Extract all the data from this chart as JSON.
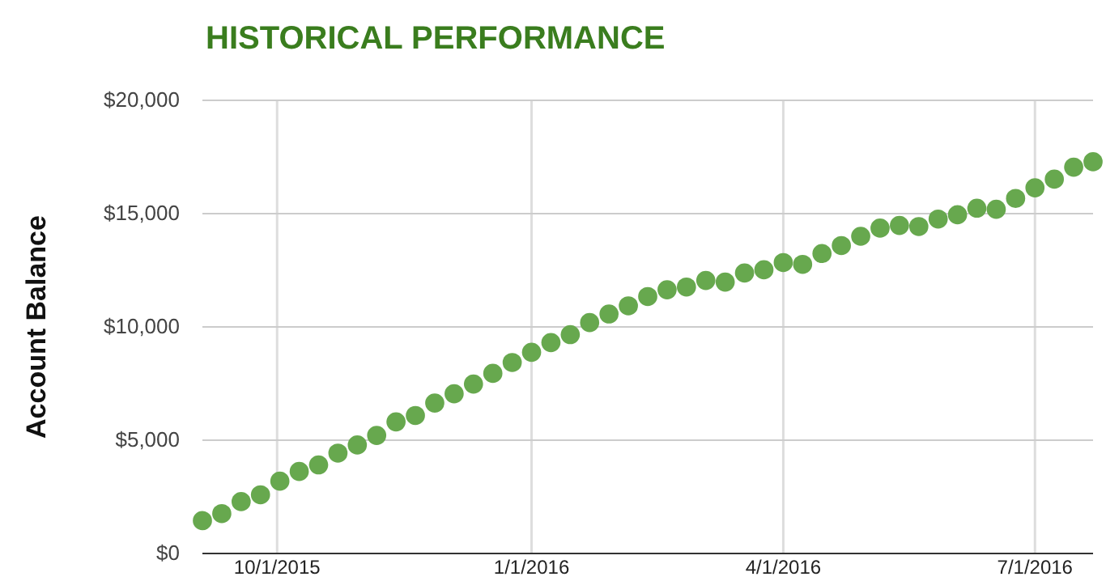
{
  "chart_data": {
    "type": "scatter",
    "title": "HISTORICAL PERFORMANCE",
    "ylabel": "Account Balance",
    "x": [
      "2015-09-04",
      "2015-09-11",
      "2015-09-18",
      "2015-09-25",
      "2015-10-02",
      "2015-10-09",
      "2015-10-16",
      "2015-10-23",
      "2015-10-30",
      "2015-11-06",
      "2015-11-13",
      "2015-11-20",
      "2015-11-27",
      "2015-12-04",
      "2015-12-11",
      "2015-12-18",
      "2015-12-25",
      "2016-01-01",
      "2016-01-08",
      "2016-01-15",
      "2016-01-22",
      "2016-01-29",
      "2016-02-05",
      "2016-02-12",
      "2016-02-19",
      "2016-02-26",
      "2016-03-04",
      "2016-03-11",
      "2016-03-18",
      "2016-03-25",
      "2016-04-01",
      "2016-04-08",
      "2016-04-15",
      "2016-04-22",
      "2016-04-29",
      "2016-05-06",
      "2016-05-13",
      "2016-05-20",
      "2016-05-27",
      "2016-06-03",
      "2016-06-10",
      "2016-06-17",
      "2016-06-24",
      "2016-07-01",
      "2016-07-08",
      "2016-07-15",
      "2016-07-22"
    ],
    "series": [
      {
        "color": "#67a84e",
        "values": [
          1450,
          1760,
          2290,
          2590,
          3190,
          3620,
          3910,
          4430,
          4790,
          5210,
          5810,
          6090,
          6640,
          7050,
          7480,
          7950,
          8430,
          8880,
          9310,
          9660,
          10190,
          10570,
          10930,
          11340,
          11640,
          11760,
          12050,
          11980,
          12380,
          12520,
          12840,
          12760,
          13240,
          13590,
          14000,
          14360,
          14480,
          14430,
          14760,
          14950,
          15240,
          15190,
          15670,
          16140,
          16520,
          17050,
          17290
        ]
      }
    ],
    "marker": "circle",
    "grid": true,
    "xlim": [
      "2015-09-04",
      "2016-07-22"
    ],
    "xticks": [
      {
        "value": "2015-10-01",
        "label": "10/1/2015"
      },
      {
        "value": "2016-01-01",
        "label": "1/1/2016"
      },
      {
        "value": "2016-04-01",
        "label": "4/1/2016"
      },
      {
        "value": "2016-07-01",
        "label": "7/1/2016"
      }
    ],
    "ylim": [
      0,
      20000
    ],
    "yticks": [
      {
        "value": 0,
        "label": "$0"
      },
      {
        "value": 5000,
        "label": "$5,000"
      },
      {
        "value": 10000,
        "label": "$10,000"
      },
      {
        "value": 15000,
        "label": "$15,000"
      },
      {
        "value": 20000,
        "label": "$20,000"
      }
    ]
  }
}
